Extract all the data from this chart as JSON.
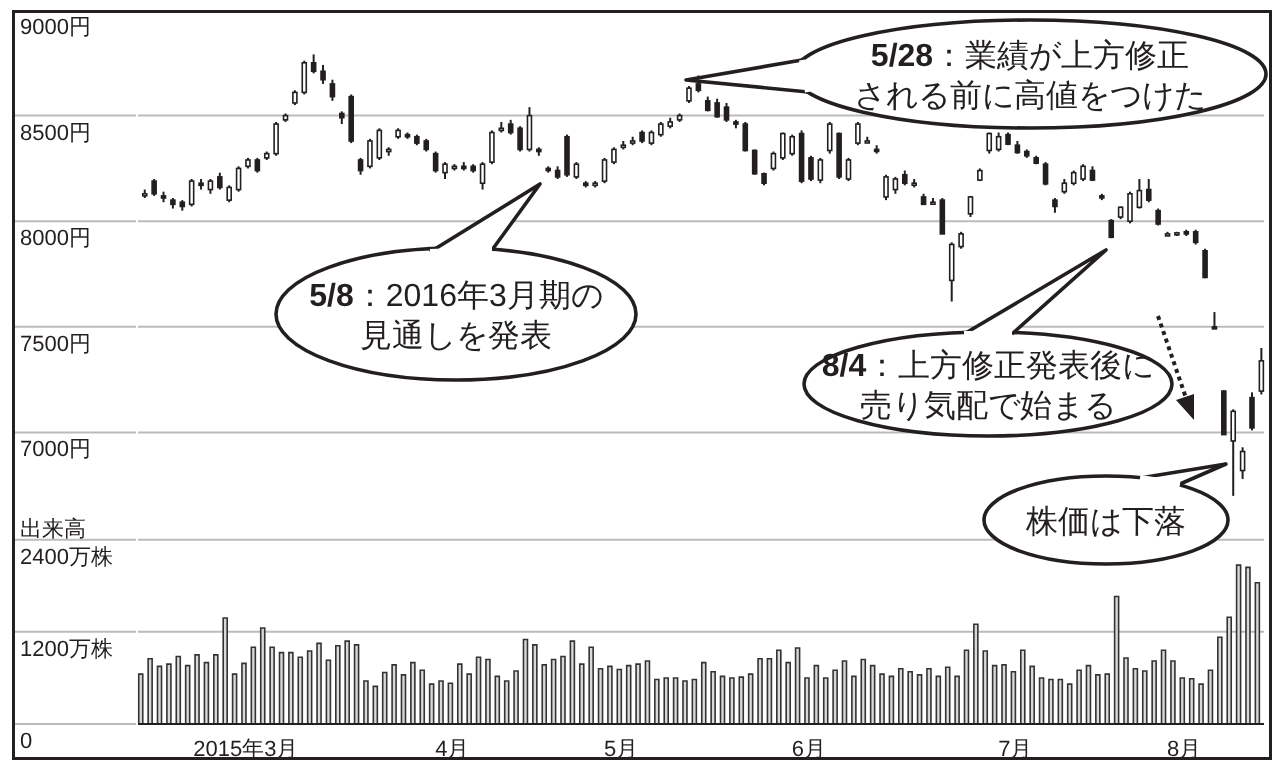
{
  "chart_data": {
    "type": "candlestick",
    "grid": "y",
    "color": "#231f20",
    "categories": [
      null,
      null,
      null,
      null,
      null,
      null,
      null,
      null,
      null,
      null,
      null,
      "2015年3月",
      null,
      null,
      null,
      null,
      null,
      null,
      null,
      null,
      null,
      null,
      null,
      null,
      null,
      null,
      null,
      null,
      null,
      null,
      null,
      null,
      null,
      "4月",
      null,
      null,
      null,
      null,
      null,
      null,
      null,
      null,
      null,
      null,
      null,
      null,
      null,
      null,
      null,
      null,
      null,
      "5月",
      null,
      null,
      null,
      null,
      null,
      null,
      null,
      null,
      null,
      null,
      null,
      null,
      null,
      null,
      null,
      null,
      null,
      null,
      null,
      "6月",
      null,
      null,
      null,
      null,
      null,
      null,
      null,
      null,
      null,
      null,
      null,
      null,
      null,
      null,
      null,
      null,
      null,
      null,
      null,
      null,
      null,
      "7月",
      null,
      null,
      null,
      null,
      null,
      null,
      null,
      null,
      null,
      null,
      null,
      null,
      null,
      null,
      null,
      null,
      null,
      "8月",
      null,
      null,
      null,
      null,
      null,
      null,
      null,
      null
    ],
    "ohlc": [
      [
        8130,
        8150,
        8110,
        8130
      ],
      [
        8190,
        8200,
        8120,
        8130
      ],
      [
        8120,
        8140,
        8090,
        8110
      ],
      [
        8100,
        8110,
        8060,
        8080
      ],
      [
        8090,
        8100,
        8050,
        8070
      ],
      [
        8080,
        8200,
        8070,
        8190
      ],
      [
        8180,
        8200,
        8150,
        8170
      ],
      [
        8150,
        8200,
        8130,
        8190
      ],
      [
        8210,
        8230,
        8150,
        8160
      ],
      [
        8100,
        8170,
        8090,
        8160
      ],
      [
        8150,
        8260,
        8140,
        8250
      ],
      [
        8260,
        8300,
        8250,
        8290
      ],
      [
        8290,
        8300,
        8230,
        8240
      ],
      [
        8300,
        8330,
        8290,
        8320
      ],
      [
        8320,
        8470,
        8310,
        8460
      ],
      [
        8480,
        8510,
        8470,
        8500
      ],
      [
        8560,
        8620,
        8550,
        8610
      ],
      [
        8610,
        8760,
        8600,
        8750
      ],
      [
        8750,
        8790,
        8700,
        8710
      ],
      [
        8710,
        8740,
        8650,
        8670
      ],
      [
        8650,
        8670,
        8570,
        8590
      ],
      [
        8510,
        8520,
        8460,
        8490
      ],
      [
        8590,
        8600,
        8370,
        8380
      ],
      [
        8290,
        8300,
        8220,
        8240
      ],
      [
        8260,
        8390,
        8250,
        8380
      ],
      [
        8300,
        8440,
        8290,
        8430
      ],
      [
        8330,
        8350,
        8310,
        8340
      ],
      [
        8400,
        8440,
        8390,
        8430
      ],
      [
        8410,
        8420,
        8390,
        8400
      ],
      [
        8400,
        8410,
        8360,
        8370
      ],
      [
        8380,
        8390,
        8330,
        8340
      ],
      [
        8320,
        8330,
        8230,
        8240
      ],
      [
        8230,
        8280,
        8200,
        8270
      ],
      [
        8250,
        8270,
        8240,
        8260
      ],
      [
        8260,
        8280,
        8240,
        8250
      ],
      [
        8260,
        8270,
        8230,
        8240
      ],
      [
        8180,
        8280,
        8150,
        8270
      ],
      [
        8280,
        8430,
        8270,
        8420
      ],
      [
        8430,
        8470,
        8420,
        8440
      ],
      [
        8460,
        8480,
        8410,
        8420
      ],
      [
        8440,
        8450,
        8330,
        8340
      ],
      [
        8340,
        8540,
        8330,
        8500
      ],
      [
        8340,
        8350,
        8310,
        8330
      ],
      [
        8250,
        8260,
        8230,
        8240
      ],
      [
        8240,
        8260,
        8200,
        8210
      ],
      [
        8400,
        8410,
        8210,
        8220
      ],
      [
        8210,
        8280,
        8200,
        8270
      ],
      [
        8180,
        8190,
        8160,
        8170
      ],
      [
        8170,
        8190,
        8160,
        8180
      ],
      [
        8190,
        8300,
        8180,
        8290
      ],
      [
        8280,
        8350,
        8270,
        8340
      ],
      [
        8350,
        8380,
        8340,
        8360
      ],
      [
        8370,
        8400,
        8360,
        8380
      ],
      [
        8420,
        8430,
        8370,
        8380
      ],
      [
        8370,
        8430,
        8360,
        8420
      ],
      [
        8410,
        8470,
        8400,
        8460
      ],
      [
        8450,
        8490,
        8440,
        8470
      ],
      [
        8480,
        8510,
        8470,
        8500
      ],
      [
        8570,
        8640,
        8560,
        8630
      ],
      [
        8650,
        8690,
        8610,
        8620
      ],
      [
        8570,
        8590,
        8520,
        8525
      ],
      [
        8560,
        8580,
        8490,
        8495
      ],
      [
        8540,
        8560,
        8470,
        8480
      ],
      [
        8470,
        8480,
        8440,
        8460
      ],
      [
        8460,
        8470,
        8330,
        8335
      ],
      [
        8335,
        8340,
        8220,
        8225
      ],
      [
        8225,
        8230,
        8170,
        8180
      ],
      [
        8250,
        8330,
        8240,
        8320
      ],
      [
        8300,
        8420,
        8290,
        8415
      ],
      [
        8320,
        8410,
        8310,
        8400
      ],
      [
        8415,
        8430,
        8180,
        8190
      ],
      [
        8300,
        8310,
        8190,
        8200
      ],
      [
        8195,
        8300,
        8180,
        8290
      ],
      [
        8335,
        8470,
        8320,
        8460
      ],
      [
        8415,
        8420,
        8200,
        8210
      ],
      [
        8200,
        8300,
        8190,
        8290
      ],
      [
        8370,
        8470,
        8360,
        8460
      ],
      [
        8380,
        8400,
        8370,
        8380
      ],
      [
        8340,
        8360,
        8320,
        8335
      ],
      [
        8115,
        8220,
        8100,
        8210
      ],
      [
        8150,
        8210,
        8130,
        8200
      ],
      [
        8220,
        8240,
        8170,
        8180
      ],
      [
        8180,
        8200,
        8160,
        8180
      ],
      [
        8115,
        8130,
        8080,
        8080
      ],
      [
        8090,
        8110,
        8080,
        8090
      ],
      [
        8100,
        8110,
        7940,
        7940
      ],
      [
        7720,
        7900,
        7620,
        7890
      ],
      [
        7880,
        7950,
        7870,
        7940
      ],
      [
        8035,
        8120,
        8020,
        8115
      ],
      [
        8195,
        8250,
        8190,
        8240
      ],
      [
        8335,
        8420,
        8320,
        8415
      ],
      [
        8340,
        8420,
        8330,
        8400
      ],
      [
        8410,
        8420,
        8360,
        8365
      ],
      [
        8360,
        8380,
        8320,
        8325
      ],
      [
        8330,
        8340,
        8300,
        8310
      ],
      [
        8300,
        8310,
        8270,
        8275
      ],
      [
        8270,
        8280,
        8170,
        8177
      ],
      [
        8100,
        8110,
        8040,
        8070
      ],
      [
        8140,
        8200,
        8130,
        8180
      ],
      [
        8180,
        8240,
        8170,
        8230
      ],
      [
        8200,
        8270,
        8190,
        8260
      ],
      [
        8240,
        8260,
        8190,
        8195
      ],
      [
        8120,
        8130,
        8100,
        8115
      ],
      [
        8003,
        8010,
        7920,
        7924
      ],
      [
        8020,
        8070,
        8010,
        8066
      ],
      [
        8000,
        8140,
        7990,
        8130
      ],
      [
        8066,
        8200,
        8060,
        8145
      ],
      [
        8150,
        8200,
        8090,
        8100
      ],
      [
        8050,
        8060,
        7980,
        7987
      ],
      [
        7940,
        7950,
        7930,
        7940
      ],
      [
        7940,
        7950,
        7930,
        7945
      ],
      [
        7950,
        7960,
        7930,
        7940
      ],
      [
        7950,
        7960,
        7890,
        7900
      ],
      [
        7860,
        7870,
        7730,
        7734
      ],
      [
        7500,
        7570,
        7490,
        7497
      ],
      [
        7196,
        7200,
        6990,
        6990
      ],
      [
        6960,
        7110,
        6700,
        7100
      ],
      [
        6820,
        6930,
        6780,
        6910
      ],
      [
        7165,
        7190,
        7010,
        7022
      ],
      [
        7196,
        7400,
        7180,
        7339
      ]
    ],
    "series": [
      {
        "type": "bar",
        "axis": "y2",
        "color": "#d9d9d9",
        "values": [
          650,
          850,
          750,
          780,
          880,
          760,
          900,
          800,
          900,
          1380,
          650,
          790,
          1000,
          1250,
          1000,
          930,
          930,
          870,
          950,
          1050,
          830,
          1020,
          1080,
          1030,
          560,
          490,
          670,
          770,
          640,
          800,
          700,
          520,
          560,
          530,
          780,
          650,
          870,
          840,
          620,
          560,
          690,
          1100,
          1030,
          770,
          840,
          880,
          1080,
          780,
          1000,
          720,
          750,
          710,
          760,
          780,
          820,
          580,
          600,
          600,
          560,
          580,
          800,
          680,
          620,
          600,
          610,
          650,
          850,
          850,
          960,
          800,
          990,
          600,
          760,
          600,
          700,
          820,
          620,
          840,
          760,
          650,
          620,
          720,
          680,
          640,
          720,
          620,
          740,
          620,
          960,
          1300,
          950,
          760,
          770,
          680,
          960,
          750,
          600,
          580,
          580,
          520,
          700,
          760,
          640,
          650,
          1660,
          860,
          720,
          690,
          820,
          960,
          820,
          600,
          590,
          520,
          700,
          1130,
          1390,
          2070,
          2040,
          1840
        ]
      }
    ],
    "ylim": [
      5620,
      9000
    ],
    "yticks": [
      {
        "value": 7000,
        "label": "7000円"
      },
      {
        "value": 7500,
        "label": "7500円"
      },
      {
        "value": 8000,
        "label": "8000円"
      },
      {
        "value": 8500,
        "label": "8500円"
      },
      {
        "value": 9000,
        "label": "9000円"
      }
    ],
    "y2lim": [
      0,
      9300
    ],
    "y2ticks": [
      0,
      {
        "value": 1200,
        "label": "1200万株"
      },
      {
        "value": 2400,
        "label": "2400万株"
      }
    ],
    "annotations": [
      "5/28：業績が上方修正される前に高値をつけた",
      "5/8：2016年3月期の見通しを発表",
      "8/4：上方修正発表後に売り気配で始まる",
      "株価は下落",
      "出来高"
    ]
  }
}
